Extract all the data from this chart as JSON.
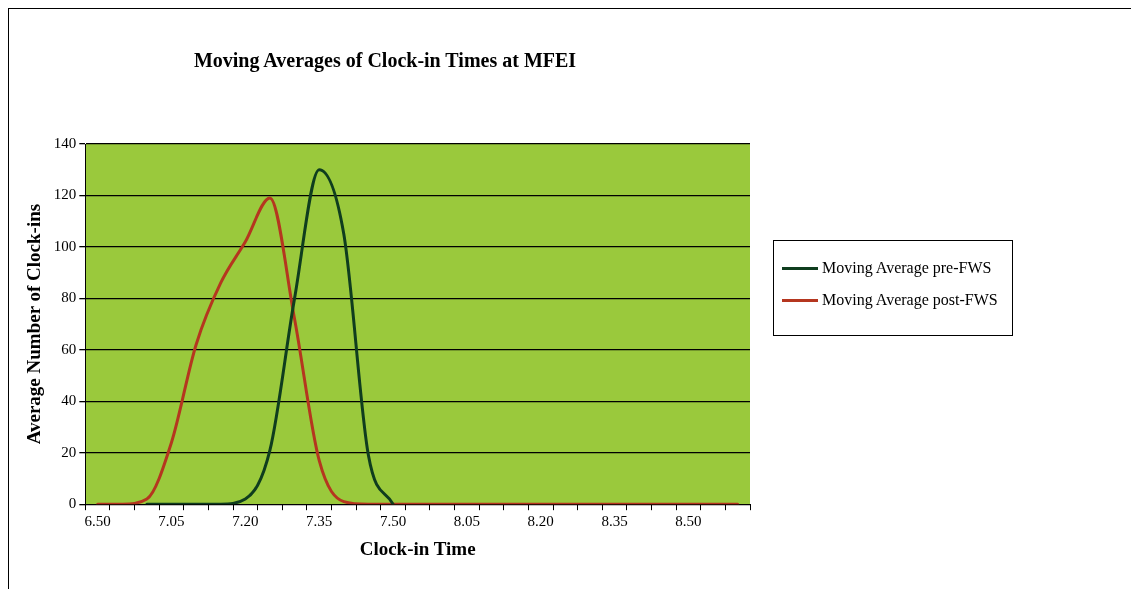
{
  "chart_data": {
    "type": "line",
    "title": "Moving Averages of Clock-in Times at MFEI",
    "xlabel": "Clock-in Time",
    "ylabel": "Average Number of Clock-ins",
    "categories": [
      "6.50",
      null,
      null,
      "7.05",
      null,
      null,
      "7.20",
      null,
      null,
      "7.35",
      null,
      null,
      "7.50",
      null,
      null,
      "8.05",
      null,
      null,
      "8.20",
      null,
      null,
      "8.35",
      null,
      null,
      "8.50",
      null,
      null
    ],
    "ylim": [
      0,
      140
    ],
    "yticks": [
      0,
      20,
      40,
      60,
      80,
      100,
      120,
      140
    ],
    "grid": "y",
    "legend": "right",
    "marker": "none",
    "line_style": "solid",
    "series": [
      {
        "name": "Moving Average pre-FWS",
        "color": "#0f3d1e",
        "values": [
          null,
          null,
          0,
          0,
          0,
          0,
          2,
          21,
          80,
          130,
          105,
          19,
          0,
          null,
          null,
          null,
          null,
          null,
          null,
          null,
          null,
          null,
          null,
          null,
          null,
          null,
          null
        ]
      },
      {
        "name": "Moving Average post-FWS",
        "color": "#b5361f",
        "values": [
          0,
          0,
          2,
          24,
          62,
          86,
          102,
          119,
          72,
          17,
          1,
          0,
          0,
          0,
          0,
          0,
          0,
          0,
          0,
          0,
          0,
          0,
          0,
          0,
          0,
          0,
          0
        ]
      }
    ]
  }
}
